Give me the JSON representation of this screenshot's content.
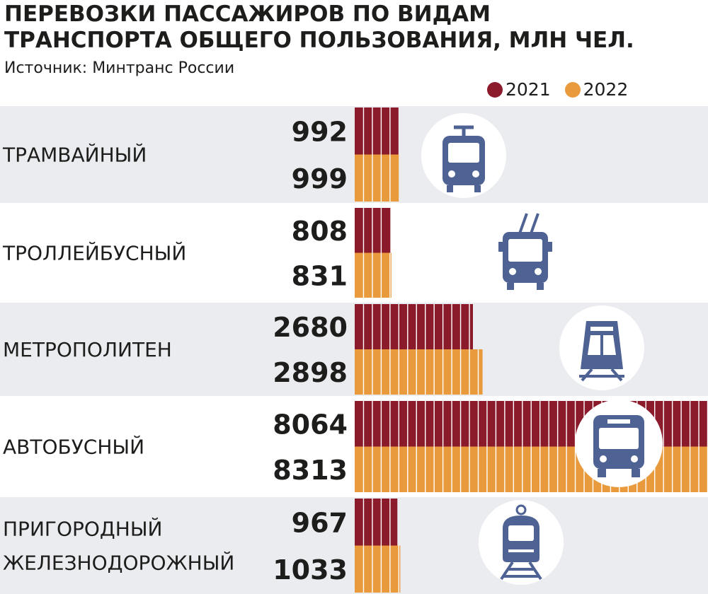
{
  "header": {
    "title_line1": "ПЕРЕВОЗКИ ПАССАЖИРОВ ПО ВИДАМ",
    "title_line2": "ТРАНСПОРТА ОБЩЕГО ПОЛЬЗОВАНИЯ, МЛН ЧЕЛ.",
    "source": "Источник: Минтранс России"
  },
  "colors": {
    "series_2021": "#8b1a2b",
    "series_2022": "#e89a3c",
    "row_shade": "#ebecf0",
    "icon_color": "#4f6294"
  },
  "chart_data": {
    "type": "bar",
    "orientation": "horizontal",
    "title": "ПЕРЕВОЗКИ ПАССАЖИРОВ ПО ВИДАМ ТРАНСПОРТА ОБЩЕГО ПОЛЬЗОВАНИЯ, МЛН ЧЕЛ.",
    "subtitle": "Источник: Минтранс России",
    "categories": [
      [
        "ТРАМВАЙНЫЙ"
      ],
      [
        "ТРОЛЛЕЙБУСНЫЙ"
      ],
      [
        "МЕТРОПОЛИТЕН"
      ],
      [
        "АВТОБУСНЫЙ"
      ],
      [
        "ПРИГОРОДНЫЙ",
        "ЖЕЛЕЗНОДОРОЖНЫЙ"
      ]
    ],
    "series": [
      {
        "name": "2021",
        "values": [
          992,
          808,
          2680,
          8064,
          967
        ]
      },
      {
        "name": "2022",
        "values": [
          999,
          831,
          2898,
          8313,
          1033
        ]
      }
    ],
    "value_labels": [
      [
        "992",
        "999"
      ],
      [
        "808",
        "831"
      ],
      [
        "2680",
        "2898"
      ],
      [
        "8064",
        "8313"
      ],
      [
        "967",
        "1033"
      ]
    ],
    "segment_step": 200,
    "legend_position": "top-right",
    "icons": [
      "tram-icon",
      "trolleybus-icon",
      "metro-icon",
      "bus-icon",
      "train-icon"
    ]
  }
}
